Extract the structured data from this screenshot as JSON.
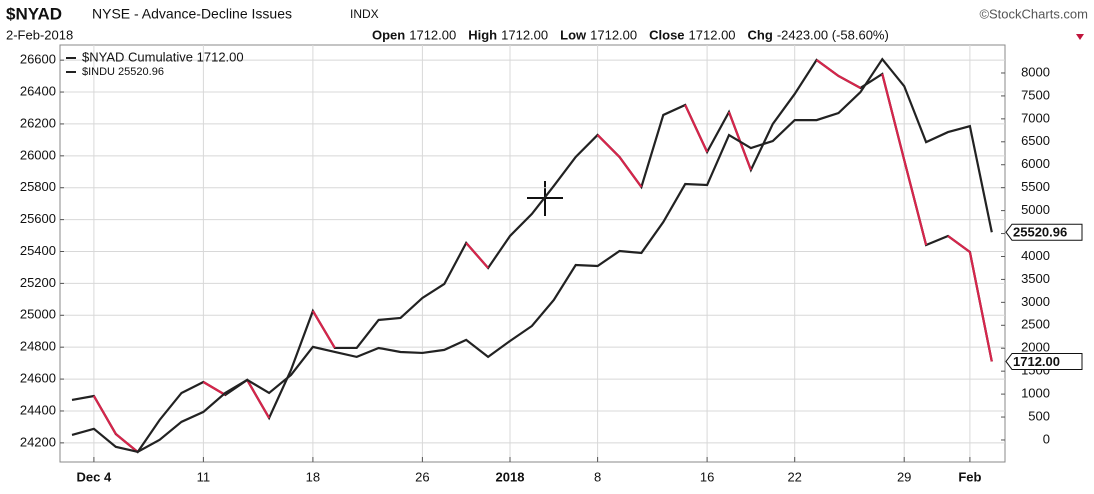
{
  "header": {
    "symbol": "$NYAD",
    "name": "NYSE - Advance-Decline Issues",
    "exchange": "INDX",
    "credit": "©StockCharts.com",
    "date": "2-Feb-2018",
    "quote": [
      {
        "label": "Open",
        "value": "1712.00"
      },
      {
        "label": "High",
        "value": "1712.00"
      },
      {
        "label": "Low",
        "value": "1712.00"
      },
      {
        "label": "Close",
        "value": "1712.00"
      },
      {
        "label": "Chg",
        "value": "-2423.00 (-58.60%)"
      }
    ]
  },
  "chart_data": {
    "type": "line",
    "categories": [
      null,
      "Dec 4",
      null,
      null,
      null,
      null,
      "11",
      null,
      null,
      null,
      null,
      "18",
      null,
      null,
      null,
      null,
      "26",
      null,
      null,
      null,
      "2018",
      null,
      null,
      null,
      "8",
      null,
      null,
      null,
      null,
      "16",
      null,
      null,
      null,
      "22",
      null,
      null,
      null,
      null,
      "29",
      null,
      null,
      "Feb",
      null
    ],
    "series": [
      {
        "name": "$NYAD Cumulative 1712.00",
        "axis": "y2",
        "color": "#222222",
        "down_color": "#d6254b",
        "values": [
          872,
          959,
          131,
          -262,
          436,
          1025,
          1264,
          981,
          1308,
          480,
          1526,
          2812,
          2006,
          2006,
          2616,
          2660,
          3096,
          3401,
          4295,
          3750,
          4447,
          4927,
          5537,
          6169,
          6649,
          6169,
          5515,
          7085,
          7303,
          6278,
          7150,
          5886,
          6889,
          7543,
          8284,
          7935,
          7674,
          7979,
          6104,
          4251,
          4447,
          4098,
          1712
        ],
        "value_labels": [
          null,
          null,
          null,
          null,
          null,
          null,
          null,
          null,
          null,
          null,
          null,
          null,
          null,
          null,
          null,
          null,
          null,
          null,
          null,
          null,
          null,
          null,
          null,
          null,
          null,
          null,
          null,
          null,
          null,
          null,
          null,
          null,
          null,
          null,
          null,
          null,
          null,
          null,
          null,
          null,
          null,
          null,
          "1712.00"
        ]
      },
      {
        "name": "$INDU 25520.96",
        "color": "#222222",
        "values": [
          24250,
          24288,
          24175,
          24144,
          24219,
          24332,
          24394,
          24513,
          24595,
          24513,
          24626,
          24802,
          24770,
          24739,
          24795,
          24770,
          24764,
          24783,
          24846,
          24739,
          24839,
          24933,
          25096,
          25315,
          25309,
          25403,
          25391,
          25585,
          25823,
          25817,
          26130,
          26049,
          26093,
          26224,
          26224,
          26268,
          26399,
          26606,
          26437,
          26086,
          26149,
          26186,
          25520.96
        ],
        "value_labels": [
          null,
          null,
          null,
          null,
          null,
          null,
          null,
          null,
          null,
          null,
          null,
          null,
          null,
          null,
          null,
          null,
          null,
          null,
          null,
          null,
          null,
          null,
          null,
          null,
          null,
          null,
          null,
          null,
          null,
          null,
          null,
          null,
          null,
          null,
          null,
          null,
          null,
          null,
          null,
          null,
          null,
          null,
          "25520.96"
        ]
      }
    ],
    "ylim": [
      24080,
      26695
    ],
    "yticks": [
      24200,
      24400,
      24600,
      24800,
      25000,
      25200,
      25400,
      25600,
      25800,
      26000,
      26200,
      26400,
      26600
    ],
    "y2lim": [
      -480,
      8610
    ],
    "y2ticks": [
      0,
      500,
      1000,
      1500,
      2000,
      2500,
      3000,
      3500,
      4000,
      4500,
      5000,
      5500,
      6000,
      6500,
      7000,
      7500,
      8000
    ],
    "grid": true,
    "legend": "top-left"
  }
}
